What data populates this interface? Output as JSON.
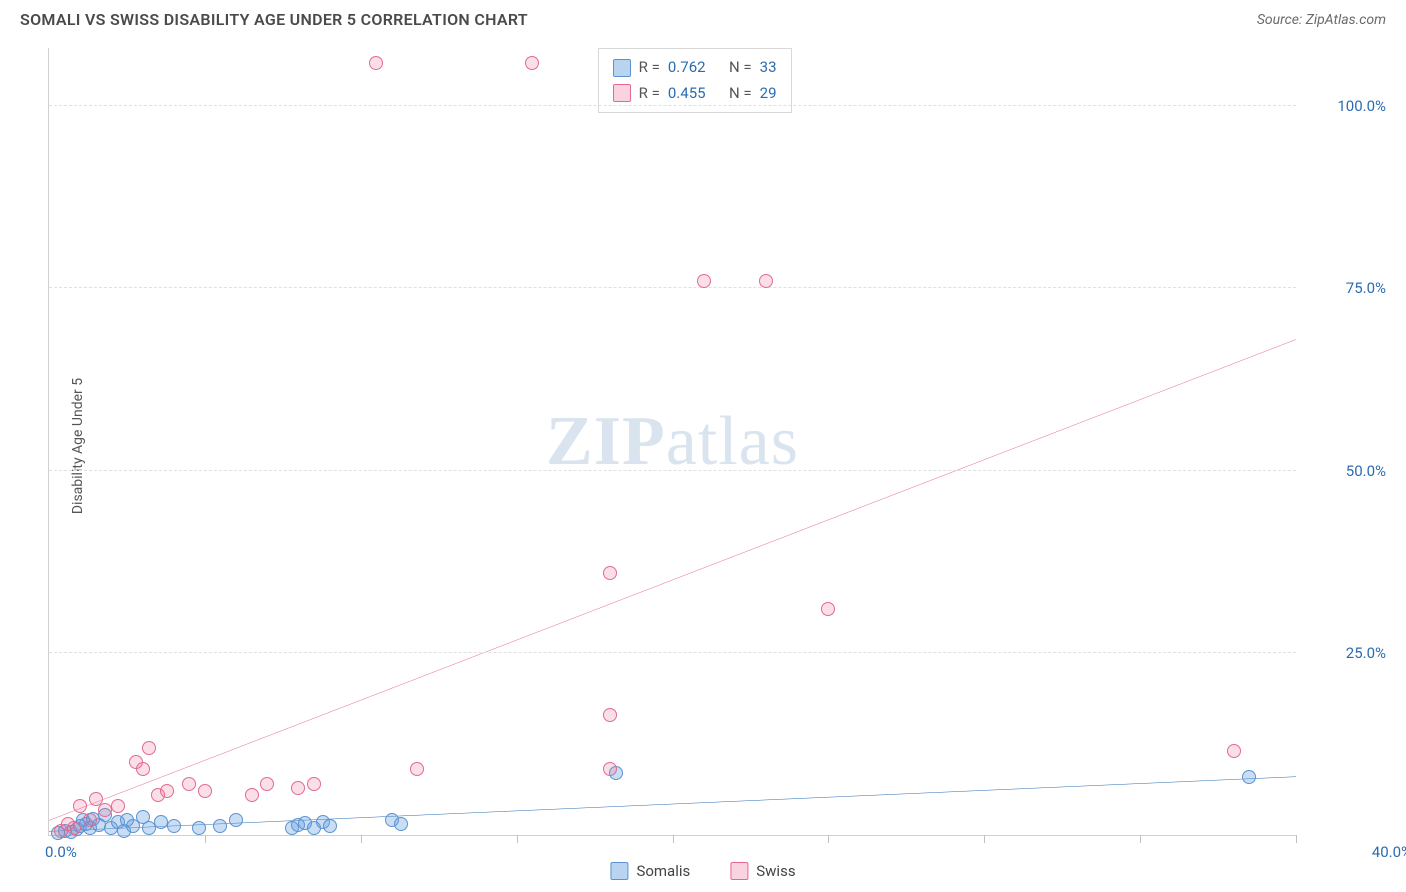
{
  "header": {
    "title": "SOMALI VS SWISS DISABILITY AGE UNDER 5 CORRELATION CHART",
    "source": "Source: ZipAtlas.com"
  },
  "y_axis_label": "Disability Age Under 5",
  "watermark": {
    "part1": "ZIP",
    "part2": "atlas"
  },
  "chart": {
    "type": "scatter",
    "xlim": [
      0,
      40
    ],
    "ylim": [
      0,
      108
    ],
    "x_origin_label": "0.0%",
    "x_max_label": "40.0%",
    "xtick_positions": [
      5,
      10,
      15,
      20,
      25,
      30,
      35,
      40
    ],
    "ytick_labels": [
      {
        "value": 25,
        "label": "25.0%"
      },
      {
        "value": 50,
        "label": "50.0%"
      },
      {
        "value": 75,
        "label": "75.0%"
      },
      {
        "value": 100,
        "label": "100.0%"
      }
    ],
    "background_color": "#ffffff",
    "grid_color": "#e0e0e0",
    "series": [
      {
        "name": "Somalis",
        "color_fill": "rgba(100,160,225,0.35)",
        "color_stroke": "#5b93d0",
        "trend_color": "#2b6cb0",
        "trend_width": 2,
        "trend": {
          "x1": 0,
          "y1": 0.5,
          "x2": 40,
          "y2": 8.0
        },
        "correlation_r": "0.762",
        "correlation_n": "33",
        "points": [
          [
            0.3,
            0.3
          ],
          [
            0.5,
            0.6
          ],
          [
            0.7,
            0.4
          ],
          [
            0.9,
            0.8
          ],
          [
            1.0,
            1.2
          ],
          [
            1.1,
            2.0
          ],
          [
            1.2,
            1.5
          ],
          [
            1.3,
            1.0
          ],
          [
            1.4,
            2.2
          ],
          [
            1.6,
            1.4
          ],
          [
            1.8,
            2.8
          ],
          [
            2.0,
            1.0
          ],
          [
            2.2,
            1.8
          ],
          [
            2.4,
            0.6
          ],
          [
            2.5,
            2.0
          ],
          [
            2.7,
            1.2
          ],
          [
            3.0,
            2.5
          ],
          [
            3.2,
            1.0
          ],
          [
            3.6,
            1.8
          ],
          [
            4.0,
            1.2
          ],
          [
            4.8,
            1.0
          ],
          [
            5.5,
            1.2
          ],
          [
            6.0,
            2.0
          ],
          [
            7.8,
            1.0
          ],
          [
            8.0,
            1.4
          ],
          [
            8.2,
            1.6
          ],
          [
            8.5,
            1.0
          ],
          [
            8.8,
            1.8
          ],
          [
            9.0,
            1.2
          ],
          [
            11.0,
            2.0
          ],
          [
            11.3,
            1.5
          ],
          [
            18.2,
            8.5
          ],
          [
            38.5,
            8.0
          ]
        ]
      },
      {
        "name": "Swiss",
        "color_fill": "rgba(235,110,150,0.22)",
        "color_stroke": "#e36a8e",
        "trend_color": "#e36a8e",
        "trend_width": 2,
        "trend": {
          "x1": 0,
          "y1": 2.0,
          "x2": 40,
          "y2": 68.0
        },
        "correlation_r": "0.455",
        "correlation_n": "29",
        "points": [
          [
            0.4,
            0.5
          ],
          [
            0.6,
            1.5
          ],
          [
            0.8,
            1.0
          ],
          [
            1.0,
            4.0
          ],
          [
            1.3,
            2.0
          ],
          [
            1.5,
            5.0
          ],
          [
            1.8,
            3.5
          ],
          [
            2.2,
            4.0
          ],
          [
            2.8,
            10.0
          ],
          [
            3.0,
            9.0
          ],
          [
            3.2,
            12.0
          ],
          [
            3.5,
            5.5
          ],
          [
            3.8,
            6.0
          ],
          [
            4.5,
            7.0
          ],
          [
            5.0,
            6.0
          ],
          [
            6.5,
            5.5
          ],
          [
            7.0,
            7.0
          ],
          [
            8.0,
            6.5
          ],
          [
            8.5,
            7.0
          ],
          [
            10.5,
            106.0
          ],
          [
            11.8,
            9.0
          ],
          [
            15.5,
            106.0
          ],
          [
            18.0,
            16.5
          ],
          [
            18.0,
            9.0
          ],
          [
            18.0,
            36.0
          ],
          [
            21.0,
            76.0
          ],
          [
            23.0,
            76.0
          ],
          [
            25.0,
            31.0
          ],
          [
            38.0,
            11.5
          ]
        ]
      }
    ]
  },
  "legend_top": {
    "rows": [
      {
        "r_label": "R =",
        "r_value": "0.762",
        "n_label": "N =",
        "n_value": "33",
        "swatch": "blue"
      },
      {
        "r_label": "R =",
        "r_value": "0.455",
        "n_label": "N =",
        "n_value": "29",
        "swatch": "pink"
      }
    ]
  },
  "legend_bottom": {
    "items": [
      {
        "label": "Somalis",
        "swatch": "blue"
      },
      {
        "label": "Swiss",
        "swatch": "pink"
      }
    ]
  }
}
